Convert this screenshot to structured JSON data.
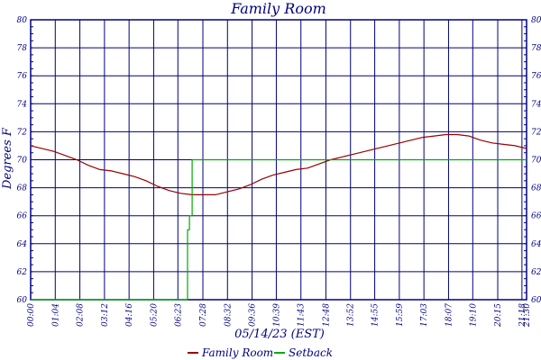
{
  "chart_data": {
    "type": "line",
    "title": "Family Room",
    "xlabel": "05/14/23 (EST)",
    "ylabel": "Degrees F",
    "ylim": [
      60,
      80
    ],
    "yticks": [
      60,
      62,
      64,
      66,
      68,
      70,
      72,
      74,
      76,
      78,
      80
    ],
    "xlim": [
      "00:00",
      "21:30"
    ],
    "xticks": [
      "00:00",
      "01:04",
      "02:08",
      "03:12",
      "04:16",
      "05:20",
      "06:23",
      "07:28",
      "08:32",
      "09:36",
      "10:39",
      "11:43",
      "12:48",
      "13:52",
      "14:55",
      "15:59",
      "17:03",
      "18:07",
      "19:10",
      "20:15",
      "21:18",
      "21:30"
    ],
    "grid": true,
    "legend": "bottom",
    "series": [
      {
        "name": "Family Room",
        "color": "#990000",
        "x": [
          "00:00",
          "00:30",
          "01:00",
          "01:30",
          "02:00",
          "02:30",
          "03:00",
          "03:30",
          "04:00",
          "04:30",
          "05:00",
          "05:30",
          "06:00",
          "06:30",
          "07:00",
          "07:30",
          "08:00",
          "08:30",
          "09:00",
          "09:30",
          "10:00",
          "10:30",
          "11:00",
          "11:30",
          "12:00",
          "12:30",
          "13:00",
          "13:30",
          "14:00",
          "14:30",
          "15:00",
          "15:30",
          "16:00",
          "16:30",
          "17:00",
          "17:30",
          "18:00",
          "18:30",
          "19:00",
          "19:30",
          "20:00",
          "20:30",
          "21:00",
          "21:30"
        ],
        "y": [
          71.0,
          70.8,
          70.6,
          70.3,
          70.0,
          69.6,
          69.3,
          69.2,
          69.0,
          68.8,
          68.5,
          68.1,
          67.8,
          67.6,
          67.5,
          67.5,
          67.5,
          67.7,
          67.9,
          68.2,
          68.6,
          68.9,
          69.1,
          69.3,
          69.4,
          69.7,
          70.0,
          70.2,
          70.4,
          70.6,
          70.8,
          71.0,
          71.2,
          71.4,
          71.6,
          71.7,
          71.8,
          71.8,
          71.7,
          71.4,
          71.2,
          71.1,
          71.0,
          70.8
        ]
      },
      {
        "name": "Setback",
        "color": "#00aa00",
        "x": [
          "00:00",
          "06:48",
          "06:48",
          "06:53",
          "06:53",
          "07:00",
          "07:00",
          "21:30"
        ],
        "y": [
          60,
          60,
          65,
          65,
          66,
          66,
          70,
          70
        ]
      }
    ]
  }
}
